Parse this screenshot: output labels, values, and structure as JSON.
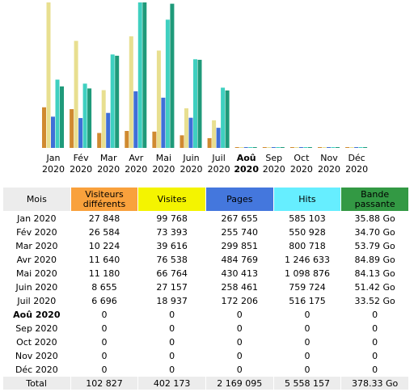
{
  "chart_data": {
    "type": "bar",
    "categories": [
      "Jan",
      "Fév",
      "Mar",
      "Avr",
      "Mai",
      "Juin",
      "Juil",
      "Aoû",
      "Sep",
      "Oct",
      "Nov",
      "Déc"
    ],
    "category_years": [
      "2020",
      "2020",
      "2020",
      "2020",
      "2020",
      "2020",
      "2020",
      "2020",
      "2020",
      "2020",
      "2020",
      "2020"
    ],
    "series": [
      {
        "color": "#d08a30",
        "values": [
          27848,
          26584,
          10224,
          11640,
          11180,
          8655,
          6696,
          0,
          0,
          0,
          0,
          0
        ]
      },
      {
        "color": "#e8df90",
        "values": [
          99768,
          73393,
          39616,
          76538,
          66764,
          27157,
          18937,
          0,
          0,
          0,
          0,
          0
        ]
      },
      {
        "color": "#3f6fd8",
        "values": [
          267655,
          255740,
          299851,
          484769,
          430413,
          258461,
          172206,
          0,
          0,
          0,
          0,
          0
        ]
      },
      {
        "color": "#3fd0c0",
        "values": [
          585103,
          550928,
          800718,
          1246633,
          1098876,
          759724,
          516175,
          0,
          0,
          0,
          0,
          0
        ]
      },
      {
        "color": "#1f9a7a",
        "values": [
          35.88,
          34.7,
          53.79,
          84.89,
          84.13,
          51.42,
          33.52,
          0,
          0,
          0,
          0,
          0
        ]
      }
    ]
  },
  "table": {
    "header": [
      {
        "text": "Mois",
        "color": "#ececec"
      },
      {
        "text": "Visiteurs différents",
        "color": "#f9a13c"
      },
      {
        "text": "Visites",
        "color": "#f4f400"
      },
      {
        "text": "Pages",
        "color": "#4477dd"
      },
      {
        "text": "Hits",
        "color": "#66eeff"
      },
      {
        "text": "Bande passante",
        "color": "#339944"
      }
    ],
    "rows": [
      [
        "Jan 2020",
        "27 848",
        "99 768",
        "267 655",
        "585 103",
        "35.88 Go"
      ],
      [
        "Fév 2020",
        "26 584",
        "73 393",
        "255 740",
        "550 928",
        "34.70 Go"
      ],
      [
        "Mar 2020",
        "10 224",
        "39 616",
        "299 851",
        "800 718",
        "53.79 Go"
      ],
      [
        "Avr 2020",
        "11 640",
        "76 538",
        "484 769",
        "1 246 633",
        "84.89 Go"
      ],
      [
        "Mai 2020",
        "11 180",
        "66 764",
        "430 413",
        "1 098 876",
        "84.13 Go"
      ],
      [
        "Juin 2020",
        "8 655",
        "27 157",
        "258 461",
        "759 724",
        "51.42 Go"
      ],
      [
        "Juil 2020",
        "6 696",
        "18 937",
        "172 206",
        "516 175",
        "33.52 Go"
      ],
      [
        "Aoû 2020",
        "0",
        "0",
        "0",
        "0",
        "0"
      ],
      [
        "Sep 2020",
        "0",
        "0",
        "0",
        "0",
        "0"
      ],
      [
        "Oct 2020",
        "0",
        "0",
        "0",
        "0",
        "0"
      ],
      [
        "Nov 2020",
        "0",
        "0",
        "0",
        "0",
        "0"
      ],
      [
        "Déc 2020",
        "0",
        "0",
        "0",
        "0",
        "0"
      ]
    ],
    "total": [
      "Total",
      "102 827",
      "402 173",
      "2 169 095",
      "5 558 157",
      "378.33 Go"
    ]
  }
}
